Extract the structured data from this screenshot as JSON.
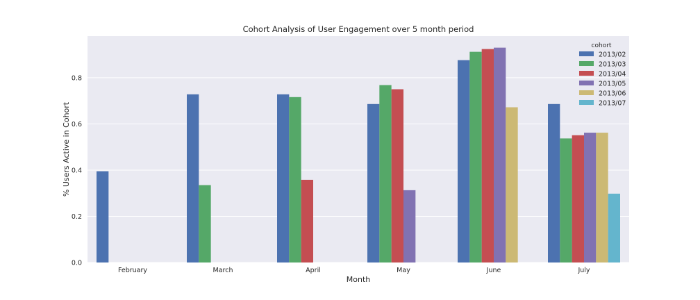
{
  "chart_data": {
    "type": "bar",
    "title": "Cohort Analysis of User Engagement over 5 month period",
    "xlabel": "Month",
    "ylabel": "% Users Active in Cohort",
    "categories": [
      "February",
      "March",
      "April",
      "May",
      "June",
      "July"
    ],
    "ylim": [
      0,
      0.98
    ],
    "yticks": [
      "0.0",
      "0.2",
      "0.4",
      "0.6",
      "0.8"
    ],
    "grid": true,
    "legend": {
      "title": "cohort",
      "placement": "top-right"
    },
    "series": [
      {
        "name": "2013/02",
        "color": "#4c72b0",
        "values": [
          0.395,
          0.728,
          0.728,
          0.686,
          0.876,
          0.686
        ]
      },
      {
        "name": "2013/03",
        "color": "#55a868",
        "values": [
          null,
          0.335,
          0.716,
          0.768,
          0.912,
          0.537
        ]
      },
      {
        "name": "2013/04",
        "color": "#c44e52",
        "values": [
          null,
          null,
          0.358,
          0.75,
          0.924,
          0.551
        ]
      },
      {
        "name": "2013/05",
        "color": "#8172b2",
        "values": [
          null,
          null,
          null,
          0.313,
          0.93,
          0.562
        ]
      },
      {
        "name": "2013/06",
        "color": "#ccb974",
        "values": [
          null,
          null,
          null,
          null,
          0.672,
          0.562
        ]
      },
      {
        "name": "2013/07",
        "color": "#64b5cd",
        "values": [
          null,
          null,
          null,
          null,
          null,
          0.298
        ]
      }
    ]
  }
}
